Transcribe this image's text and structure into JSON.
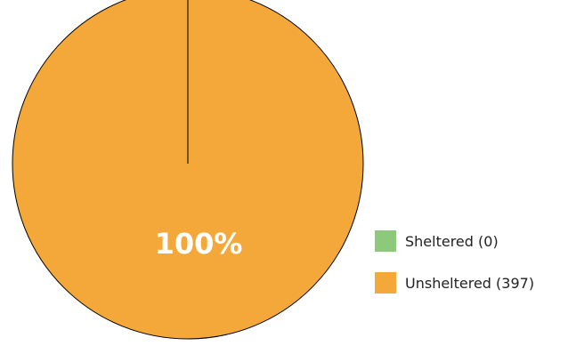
{
  "chart_data": {
    "type": "pie",
    "categories": [
      "Sheltered",
      "Unsheltered"
    ],
    "values": [
      0,
      397
    ],
    "colors": [
      "#8dc97a",
      "#f5a83a"
    ],
    "slice_labels": [
      "",
      "100%"
    ],
    "legend": {
      "placement": "right",
      "entries": [
        "Sheltered (0)",
        "Unsheltered (397)"
      ]
    }
  }
}
